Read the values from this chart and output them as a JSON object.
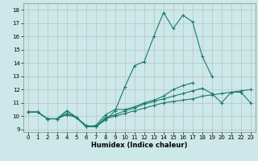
{
  "xlabel": "Humidex (Indice chaleur)",
  "x": [
    0,
    1,
    2,
    3,
    4,
    5,
    6,
    7,
    8,
    9,
    10,
    11,
    12,
    13,
    14,
    15,
    16,
    17,
    18,
    19,
    20,
    21,
    22,
    23
  ],
  "line1": [
    10.3,
    10.3,
    9.8,
    9.8,
    10.4,
    9.9,
    9.2,
    9.2,
    9.7,
    10.4,
    12.2,
    13.8,
    14.1,
    16.0,
    17.8,
    16.6,
    17.6,
    17.1,
    14.5,
    13.0,
    null,
    null,
    null,
    null
  ],
  "line2": [
    10.3,
    10.3,
    9.8,
    9.8,
    10.4,
    9.9,
    9.2,
    9.3,
    10.1,
    10.5,
    10.5,
    10.7,
    11.0,
    11.2,
    11.5,
    12.0,
    12.3,
    12.5,
    null,
    null,
    null,
    null,
    null,
    null
  ],
  "line3": [
    10.3,
    10.3,
    9.8,
    9.8,
    10.2,
    9.9,
    9.3,
    9.2,
    9.9,
    10.1,
    10.4,
    10.6,
    10.9,
    11.1,
    11.3,
    11.5,
    11.7,
    11.9,
    12.1,
    11.7,
    11.0,
    11.8,
    11.8,
    11.0
  ],
  "line4": [
    10.3,
    10.3,
    9.8,
    9.8,
    10.1,
    9.9,
    9.2,
    9.2,
    9.8,
    10.0,
    10.2,
    10.4,
    10.6,
    10.8,
    11.0,
    11.1,
    11.2,
    11.3,
    11.5,
    11.6,
    11.7,
    11.8,
    11.9,
    12.0
  ],
  "color": "#1a7a6e",
  "bg_color": "#cce8e8",
  "ylim": [
    8.8,
    18.5
  ],
  "xlim": [
    -0.5,
    23.5
  ],
  "yticks": [
    9,
    10,
    11,
    12,
    13,
    14,
    15,
    16,
    17,
    18
  ],
  "xticks": [
    0,
    1,
    2,
    3,
    4,
    5,
    6,
    7,
    8,
    9,
    10,
    11,
    12,
    13,
    14,
    15,
    16,
    17,
    18,
    19,
    20,
    21,
    22,
    23
  ]
}
